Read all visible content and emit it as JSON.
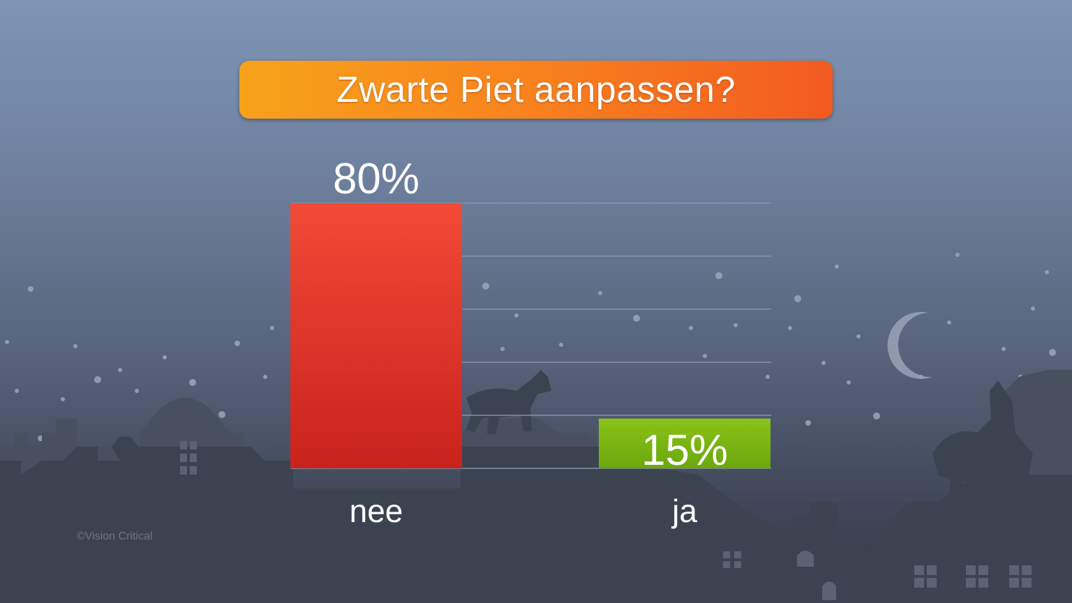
{
  "title": "Zwarte Piet aanpassen?",
  "watermark": "©Vision Critical",
  "colors": {
    "title_gradient": [
      "#f7a21b",
      "#f35a20"
    ],
    "bar_nee": [
      "#f24a36",
      "#c8221e"
    ],
    "bar_ja": [
      "#8cc21a",
      "#6aa80c"
    ],
    "gridline": "#8a97ad"
  },
  "chart_data": {
    "type": "bar",
    "title": "Zwarte Piet aanpassen?",
    "categories": [
      "nee",
      "ja"
    ],
    "values": [
      80,
      15
    ],
    "value_labels": [
      "80%",
      "15%"
    ],
    "unit": "%",
    "ylim": [
      0,
      80
    ],
    "grid": true,
    "legend": "none"
  }
}
